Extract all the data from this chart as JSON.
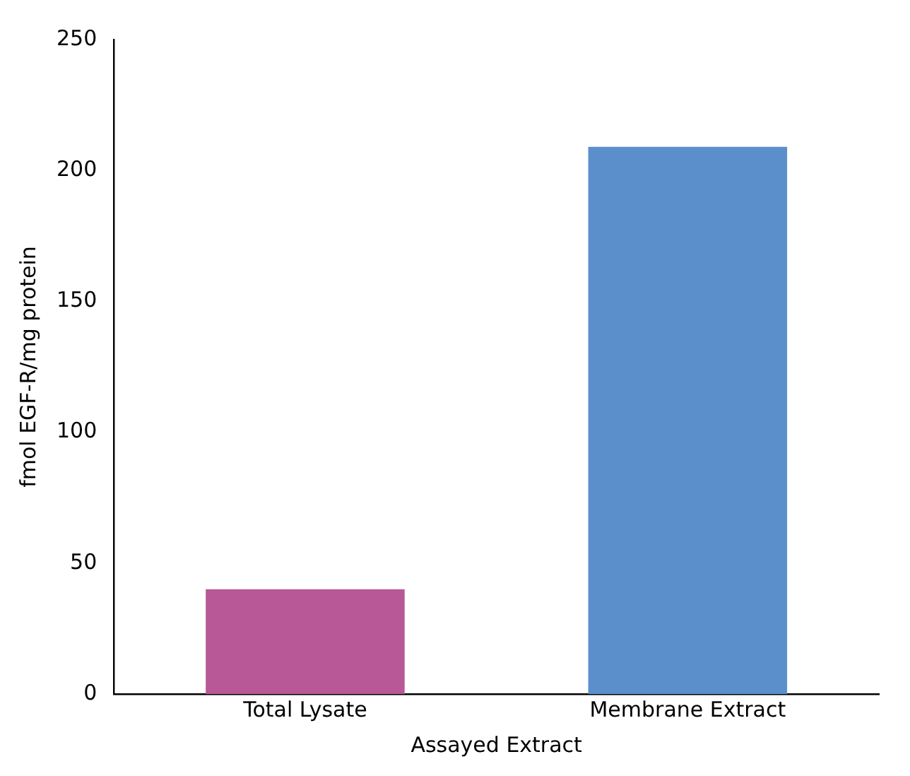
{
  "chart_data": {
    "type": "bar",
    "xlabel": "Assayed Extract",
    "ylabel": "fmol EGF-R/mg protein",
    "categories": [
      "Total Lysate",
      "Membrane Extract"
    ],
    "values": [
      40,
      209
    ],
    "colors": [
      "#b85896",
      "#5b8fcc"
    ],
    "ylim": [
      0,
      250
    ],
    "yticks": [
      0,
      50,
      100,
      150,
      200,
      250
    ],
    "grid": false,
    "legend": false
  }
}
